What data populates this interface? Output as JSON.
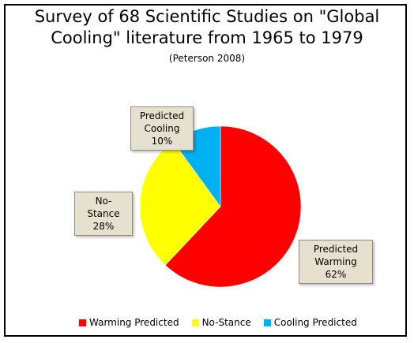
{
  "chart_data": {
    "type": "pie",
    "title_lines": [
      "Survey of 68 Scientific Studies on \"Global",
      "Cooling\" literature from 1965 to 1979"
    ],
    "subtitle": "(Peterson 2008)",
    "slices": [
      {
        "name": "Warming Predicted",
        "value": 62,
        "color": "#ff0000",
        "callout": [
          "Predicted",
          "Warming 62%"
        ]
      },
      {
        "name": "No-Stance",
        "value": 28,
        "color": "#ffff00",
        "callout": [
          "No-Stance",
          "28%"
        ]
      },
      {
        "name": "Cooling Predicted",
        "value": 10,
        "color": "#00b0f0",
        "callout": [
          "Predicted",
          "Cooling 10%"
        ]
      }
    ],
    "legend_position": "bottom"
  }
}
